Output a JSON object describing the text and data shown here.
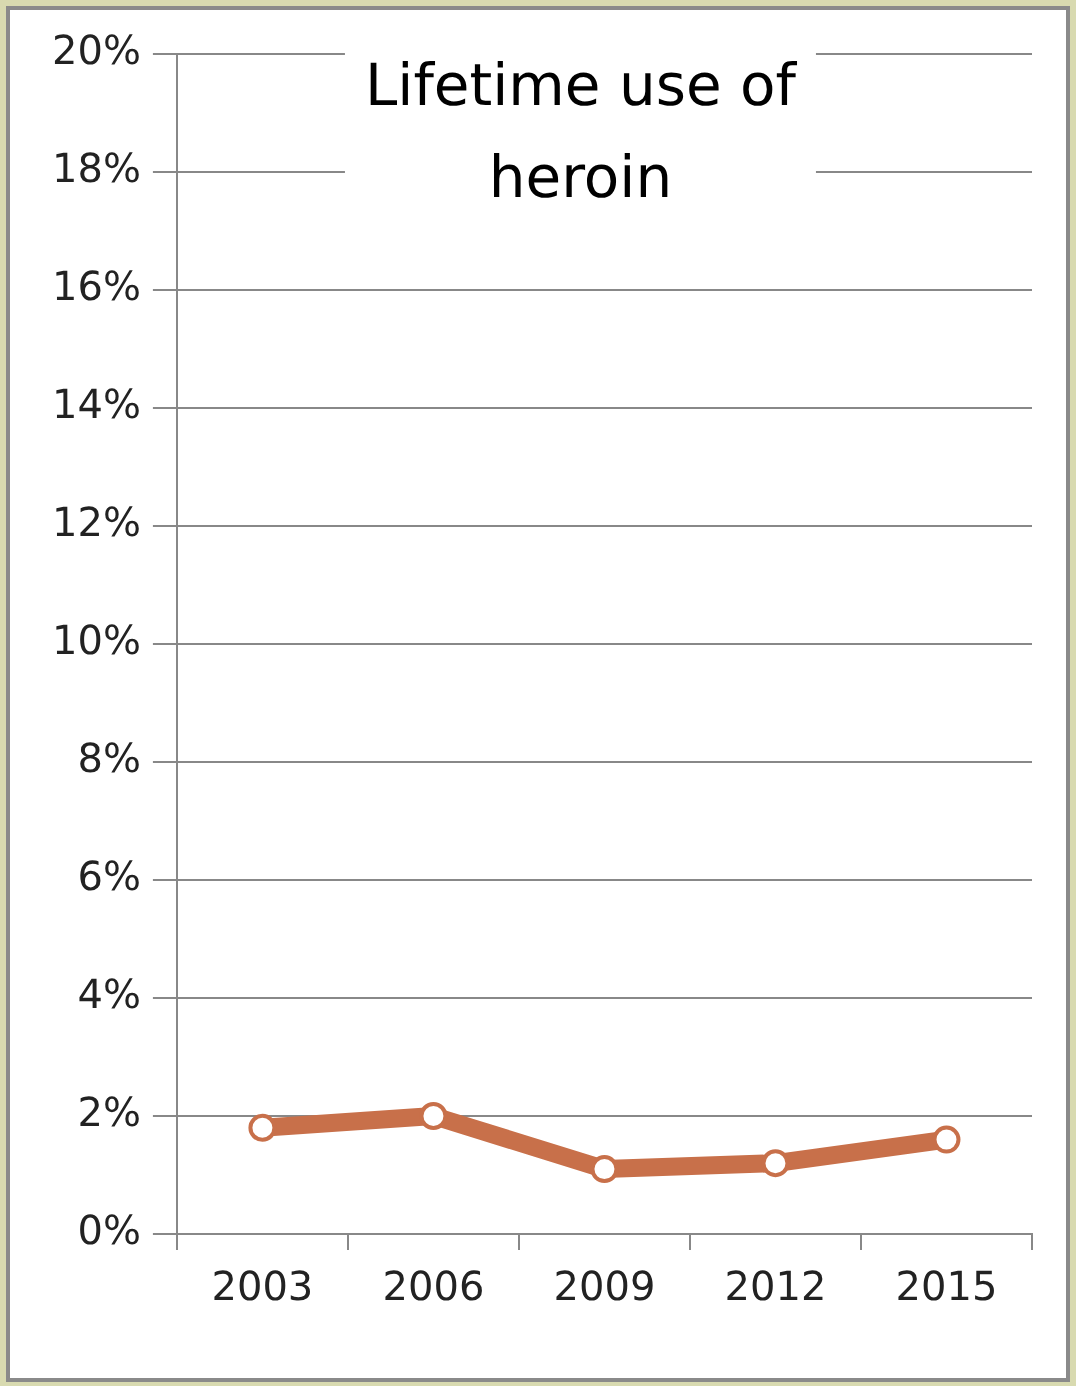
{
  "chart_data": {
    "type": "line",
    "title": "Lifetime use of heroin",
    "categories": [
      "2003",
      "2006",
      "2009",
      "2012",
      "2015"
    ],
    "series": [
      {
        "color": "#c8704a",
        "values": [
          1.8,
          2.0,
          1.1,
          1.2,
          1.6
        ]
      }
    ],
    "ylim": [
      0,
      20
    ],
    "yticks": [
      {
        "value": 0,
        "label": "0%"
      },
      {
        "value": 2,
        "label": "2%"
      },
      {
        "value": 4,
        "label": "4%"
      },
      {
        "value": 6,
        "label": "6%"
      },
      {
        "value": 8,
        "label": "8%"
      },
      {
        "value": 10,
        "label": "10%"
      },
      {
        "value": 12,
        "label": "12%"
      },
      {
        "value": 14,
        "label": "14%"
      },
      {
        "value": 16,
        "label": "16%"
      },
      {
        "value": 18,
        "label": "18%"
      },
      {
        "value": 20,
        "label": "20%"
      }
    ],
    "grid": "y",
    "legend": false,
    "marker": "circle",
    "line_style": "solid"
  }
}
